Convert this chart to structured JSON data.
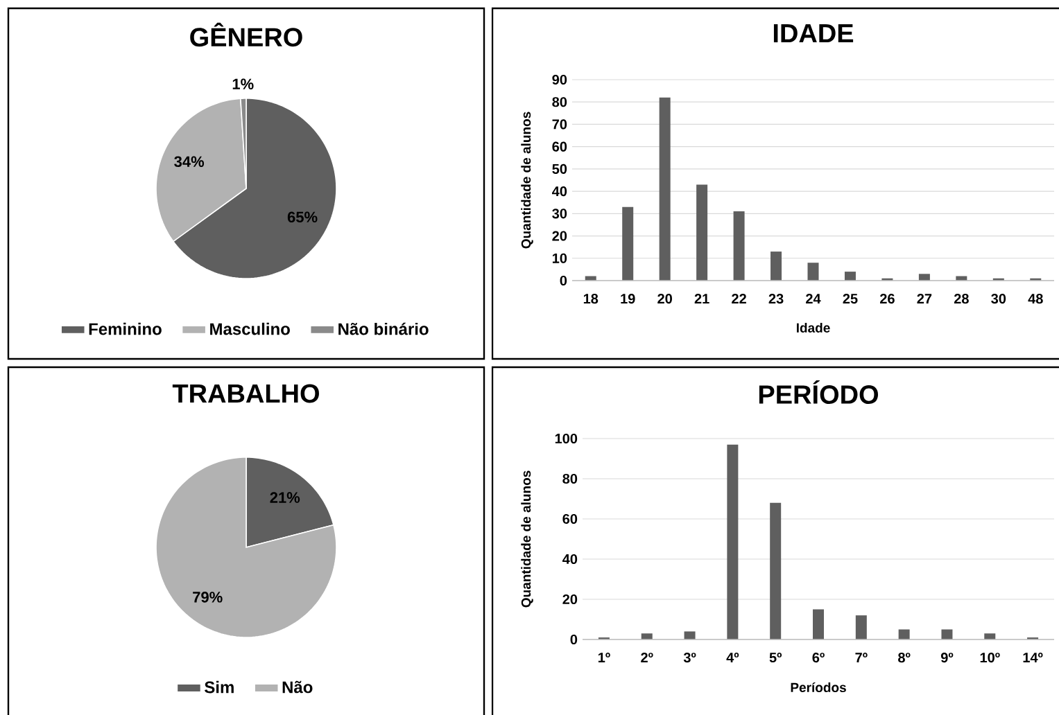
{
  "chart_data": [
    {
      "type": "pie",
      "title": "GÊNERO",
      "categories": [
        "Feminino",
        "Masculino",
        "Não binário"
      ],
      "values": [
        65,
        34,
        1
      ],
      "colors": [
        "#5f5f5f",
        "#b2b2b2",
        "#8a8a8a"
      ],
      "value_labels": [
        "65%",
        "34%",
        "1%"
      ],
      "legend": "bottom"
    },
    {
      "type": "bar",
      "title": "IDADE",
      "xlabel": "Idade",
      "ylabel": "Quantidade de alunos",
      "categories": [
        "18",
        "19",
        "20",
        "21",
        "22",
        "23",
        "24",
        "25",
        "26",
        "27",
        "28",
        "30",
        "48"
      ],
      "values": [
        2,
        33,
        82,
        43,
        31,
        13,
        8,
        4,
        1,
        3,
        2,
        1,
        1
      ],
      "color": "#5f5f5f",
      "ylim": [
        0,
        90
      ],
      "yticks": [
        0,
        10,
        20,
        30,
        40,
        50,
        60,
        70,
        80,
        90
      ],
      "grid": "y"
    },
    {
      "type": "pie",
      "title": "TRABALHO",
      "categories": [
        "Sim",
        "Não"
      ],
      "values": [
        21,
        79
      ],
      "colors": [
        "#5f5f5f",
        "#b2b2b2"
      ],
      "value_labels": [
        "21%",
        "79%"
      ],
      "legend": "bottom"
    },
    {
      "type": "bar",
      "title": "PERÍODO",
      "xlabel": "Períodos",
      "ylabel": "Quantidade de alunos",
      "categories": [
        "1º",
        "2º",
        "3º",
        "4º",
        "5º",
        "6º",
        "7º",
        "8º",
        "9º",
        "10º",
        "14º"
      ],
      "values": [
        1,
        3,
        4,
        97,
        68,
        15,
        12,
        5,
        5,
        3,
        1
      ],
      "color": "#5f5f5f",
      "ylim": [
        0,
        100
      ],
      "yticks": [
        0,
        20,
        40,
        60,
        80,
        100
      ],
      "grid": "y"
    }
  ]
}
